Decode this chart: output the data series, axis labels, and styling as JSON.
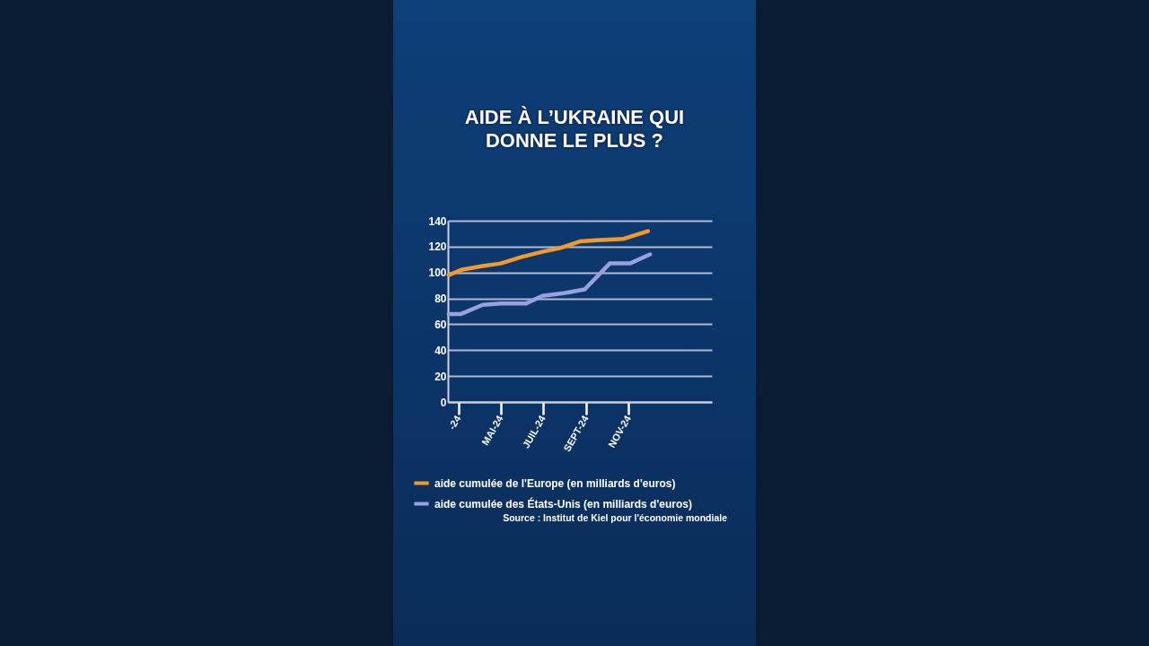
{
  "chart_data": {
    "type": "line",
    "title": "AIDE À L’UKRAINE QUI DONNE LE PLUS ?",
    "series": [
      {
        "name": "aide cumulée de l'Europe (en milliards d'euros)",
        "color": "#f39a2a",
        "x": [
          "2024-02-16",
          "2024-03-05",
          "2024-04-05",
          "2024-05-01",
          "2024-05-31",
          "2024-06-30",
          "2024-07-26",
          "2024-08-23",
          "2024-09-16",
          "2024-10-25",
          "2024-11-29"
        ],
        "values": [
          98,
          102,
          105,
          107,
          112,
          116,
          119,
          124,
          125,
          126,
          132
        ]
      },
      {
        "name": "aide cumulée des États-Unis (en milliards d'euros)",
        "color": "#9a9fe0",
        "x": [
          "2024-02-16",
          "2024-03-05",
          "2024-04-05",
          "2024-05-01",
          "2024-06-06",
          "2024-06-30",
          "2024-07-31",
          "2024-08-30",
          "2024-10-05",
          "2024-11-03",
          "2024-12-02"
        ],
        "values": [
          68,
          68,
          75,
          76,
          76,
          82,
          84,
          87,
          107,
          107,
          114
        ]
      }
    ],
    "xlim": [
      "2024-02-15",
      "2025-03-01"
    ],
    "xticks": [
      {
        "value": "2024-03-01",
        "label": "-24"
      },
      {
        "value": "2024-05-01",
        "label": "MAI-24"
      },
      {
        "value": "2024-07-01",
        "label": "JUIL-24"
      },
      {
        "value": "2024-09-01",
        "label": "SEPT-24"
      },
      {
        "value": "2024-11-01",
        "label": "NOV-24"
      }
    ],
    "ylim": [
      0,
      140
    ],
    "yticks": [
      0,
      20,
      40,
      60,
      80,
      100,
      120,
      140
    ],
    "grid": "y",
    "legend": "bottom",
    "line_style": "solid",
    "annotations": [
      "Source : Institut de Kiel pour l'économie mondiale"
    ]
  }
}
